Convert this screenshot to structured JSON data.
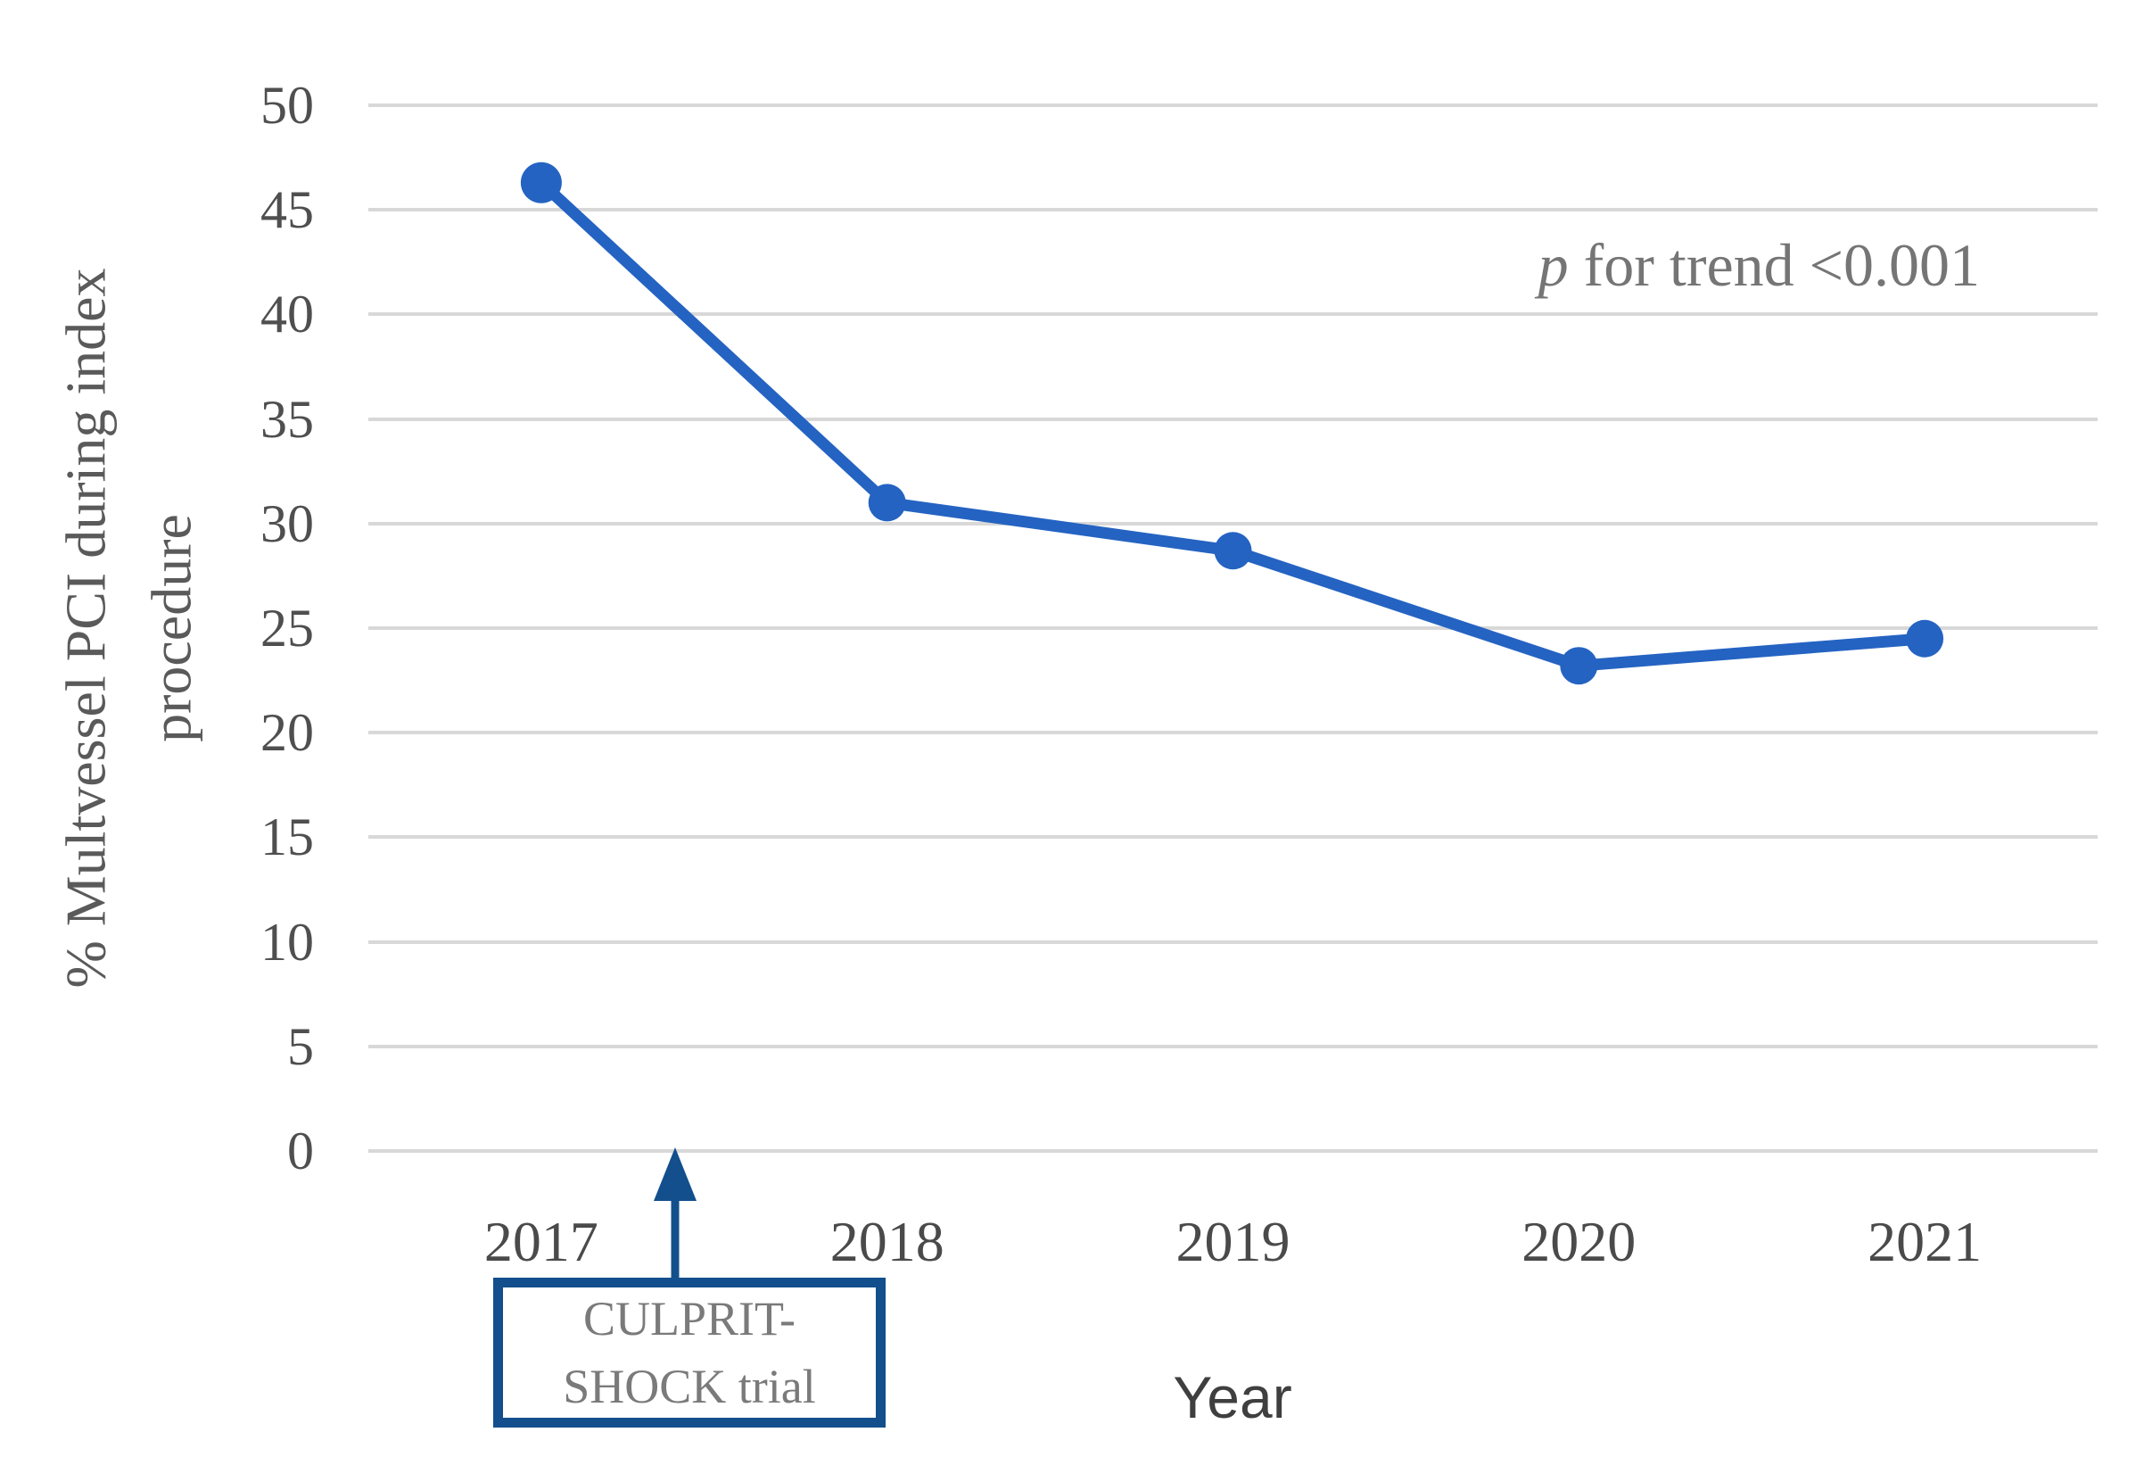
{
  "figure": {
    "xlabel": "Year",
    "ylabel_line1": "% Multvessel PCI during index",
    "ylabel_line2": "procedure",
    "p_trend": {
      "p": "p",
      "text": " for trend <0.001"
    },
    "event_annotation": {
      "line1": "CULPRIT-",
      "line2": "SHOCK trial"
    }
  },
  "chart_data": {
    "type": "line",
    "title": "",
    "categories": [
      "2017",
      "2018",
      "2019",
      "2020",
      "2021"
    ],
    "series": [
      {
        "name": "% Multvessel PCI during index procedure",
        "values": [
          46.3,
          31.0,
          28.7,
          23.2,
          24.5
        ]
      }
    ],
    "xlabel": "Year",
    "ylabel": "% Multvessel PCI during index procedure",
    "ylim": [
      0,
      50
    ],
    "yticks": [
      0,
      5,
      10,
      15,
      20,
      25,
      30,
      35,
      40,
      45,
      50
    ],
    "grid": "horizontal-only",
    "legend": "none",
    "marker": "filled-circle",
    "annotations": [
      {
        "text": "p for trend <0.001",
        "position": "upper-right"
      },
      {
        "text": "CULPRIT-SHOCK trial",
        "shape": "box-with-up-arrow",
        "arrow_points_between": [
          "2017",
          "2018"
        ]
      }
    ],
    "colors": {
      "line": "#2463c2",
      "marker": "#2463c2",
      "annotation_box": "#134f8c",
      "gridline": "#d8d8d8",
      "tick_text": "#4f4f4f",
      "annotation_text": "#7a7a7a"
    }
  }
}
